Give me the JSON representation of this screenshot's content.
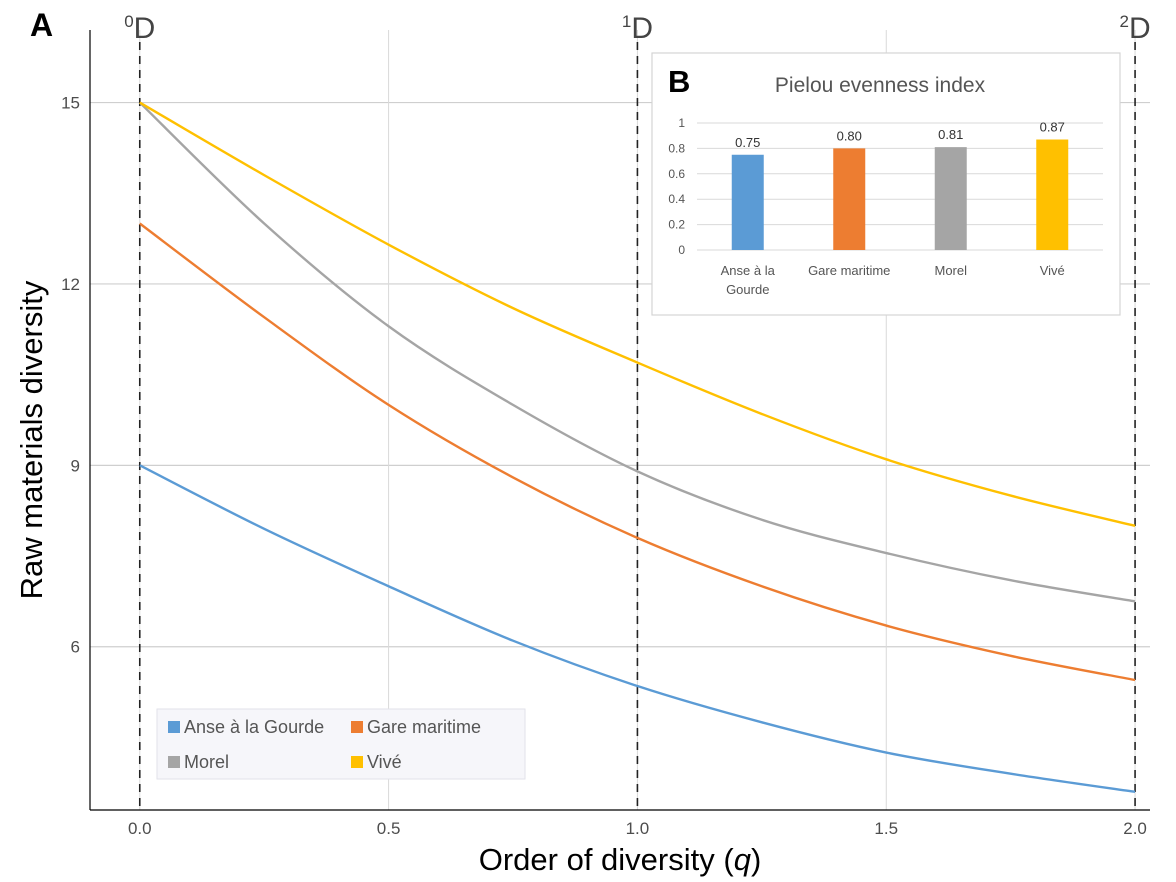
{
  "panel_a_letter": "A",
  "panel_b_letter": "B",
  "chart_data": [
    {
      "type": "line",
      "xlabel_main": "Order of diversity (",
      "xlabel_var": "q",
      "xlabel_end": ")",
      "ylabel": "Raw materials diversity",
      "xlim": [
        -0.1,
        2.03
      ],
      "ylim": [
        3.3,
        16.2
      ],
      "x_ticks": [
        0,
        0.5,
        1,
        1.5,
        2
      ],
      "x_tick_labels": [
        "0.0",
        "0.5",
        "1.0",
        "1.5",
        "2.0"
      ],
      "y_ticks": [
        6,
        9,
        12,
        15
      ],
      "y_tick_labels": [
        "6",
        "9",
        "12",
        "15"
      ],
      "grid": true,
      "reference_lines": [
        {
          "x": 0,
          "label_sup": "0",
          "label": "D"
        },
        {
          "x": 1,
          "label_sup": "1",
          "label": "D"
        },
        {
          "x": 2,
          "label_sup": "2",
          "label": "D"
        }
      ],
      "legend_position": "bottom-left",
      "x": [
        0,
        0.25,
        0.5,
        0.75,
        1,
        1.25,
        1.5,
        1.75,
        2
      ],
      "series": [
        {
          "name": "Anse à la Gourde",
          "color": "#5b9bd5",
          "values": [
            9.0,
            7.95,
            7.0,
            6.1,
            5.35,
            4.75,
            4.25,
            3.9,
            3.6
          ]
        },
        {
          "name": "Gare maritime",
          "color": "#ed7d31",
          "values": [
            13.0,
            11.45,
            10.0,
            8.8,
            7.8,
            7.0,
            6.35,
            5.85,
            5.45
          ]
        },
        {
          "name": "Morel",
          "color": "#a5a5a5",
          "values": [
            15.0,
            13.0,
            11.3,
            10.0,
            8.9,
            8.1,
            7.55,
            7.1,
            6.75
          ]
        },
        {
          "name": "Vivé",
          "color": "#ffc000",
          "values": [
            15.0,
            13.8,
            12.65,
            11.6,
            10.7,
            9.85,
            9.1,
            8.5,
            8.0
          ]
        }
      ]
    },
    {
      "type": "bar",
      "title": "Pielou evenness index",
      "categories": [
        "Anse à la Gourde",
        "Gare maritime",
        "Morel",
        "Vivé"
      ],
      "category_label_lines": [
        [
          "Anse à la",
          "Gourde"
        ],
        [
          "Gare maritime"
        ],
        [
          "Morel"
        ],
        [
          "Vivé"
        ]
      ],
      "values": [
        0.75,
        0.8,
        0.81,
        0.87
      ],
      "value_labels": [
        "0.75",
        "0.80",
        "0.81",
        "0.87"
      ],
      "colors": [
        "#5b9bd5",
        "#ed7d31",
        "#a5a5a5",
        "#ffc000"
      ],
      "ylim": [
        0,
        1
      ],
      "y_ticks": [
        0,
        0.2,
        0.4,
        0.6,
        0.8,
        1
      ],
      "y_tick_labels": [
        "0",
        "0.2",
        "0.4",
        "0.6",
        "0.8",
        "1"
      ],
      "grid": true
    }
  ]
}
